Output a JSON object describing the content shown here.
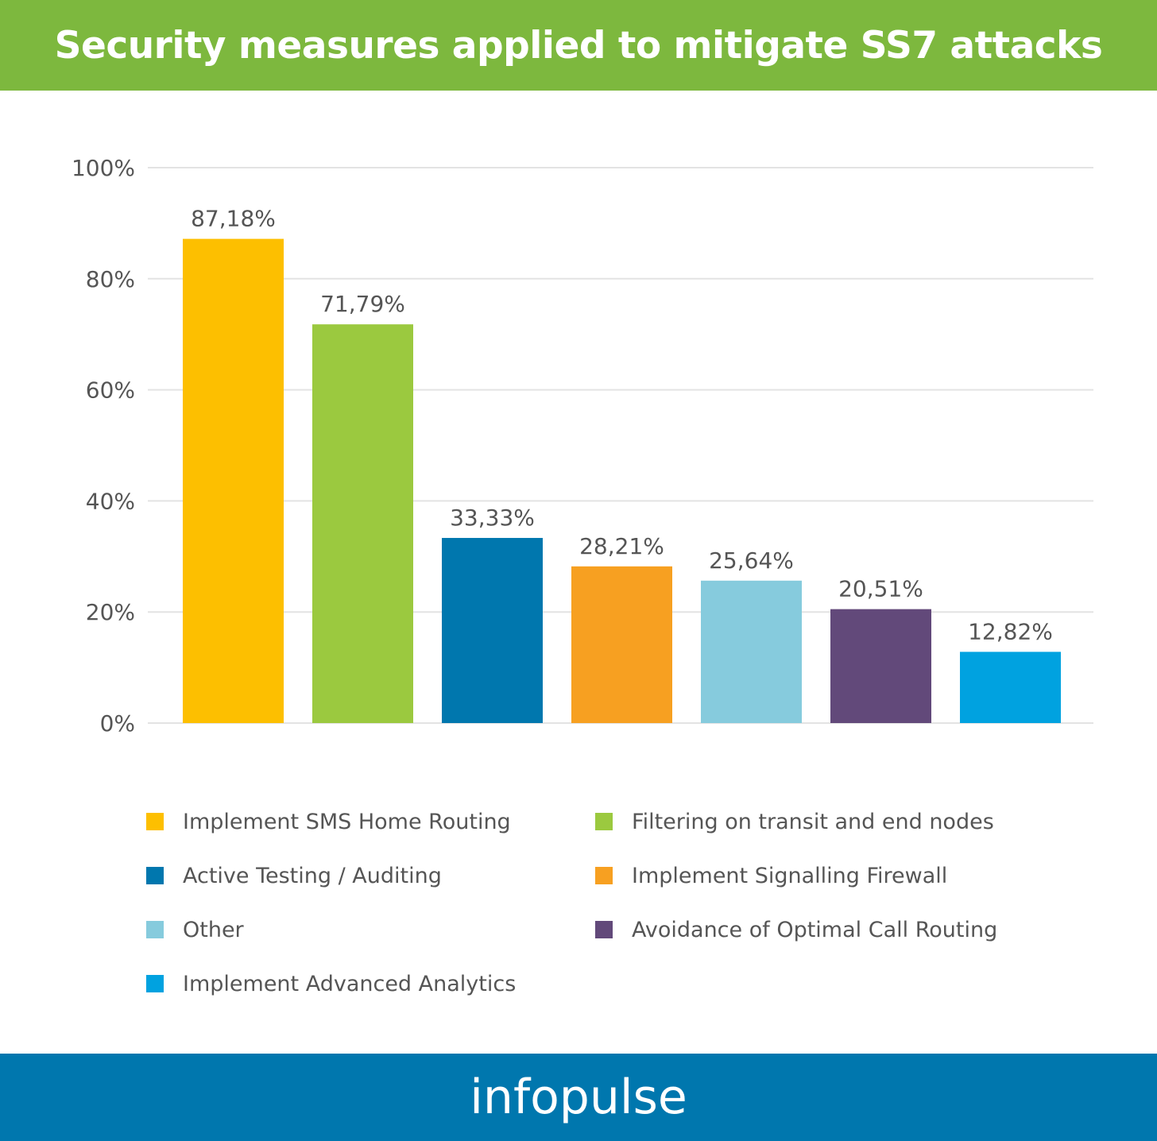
{
  "header": {
    "title": "Security measures applied to mitigate SS7 attacks"
  },
  "footer": {
    "logo_text": "infopulse"
  },
  "colors": {
    "header_bg": "#7db83e",
    "footer_bg": "#0077ae",
    "grid": "#e3e3e3",
    "tick_text": "#555555"
  },
  "chart_data": {
    "type": "bar",
    "title": "Security measures applied to mitigate SS7 attacks",
    "xlabel": "",
    "ylabel": "",
    "ylim": [
      0,
      100
    ],
    "yticks": [
      0,
      20,
      40,
      60,
      80,
      100
    ],
    "ytick_labels": [
      "0%",
      "20%",
      "40%",
      "60%",
      "80%",
      "100%"
    ],
    "grid": true,
    "legend_position": "bottom",
    "categories": [
      "Implement SMS Home Routing",
      "Filtering on transit and end nodes",
      "Active Testing / Auditing",
      "Implement Signalling Firewall",
      "Other",
      "Avoidance of Optimal Call Routing",
      "Implement Advanced Analytics"
    ],
    "values": [
      87.18,
      71.79,
      33.33,
      28.21,
      25.64,
      20.51,
      12.82
    ],
    "value_labels": [
      "87,18%",
      "71,79%",
      "33,33%",
      "28,21%",
      "25,64%",
      "20,51%",
      "12,82%"
    ],
    "colors": [
      "#fdbf00",
      "#9bc93f",
      "#0077ae",
      "#f7a021",
      "#86cbdd",
      "#62497a",
      "#00a2e0"
    ]
  }
}
